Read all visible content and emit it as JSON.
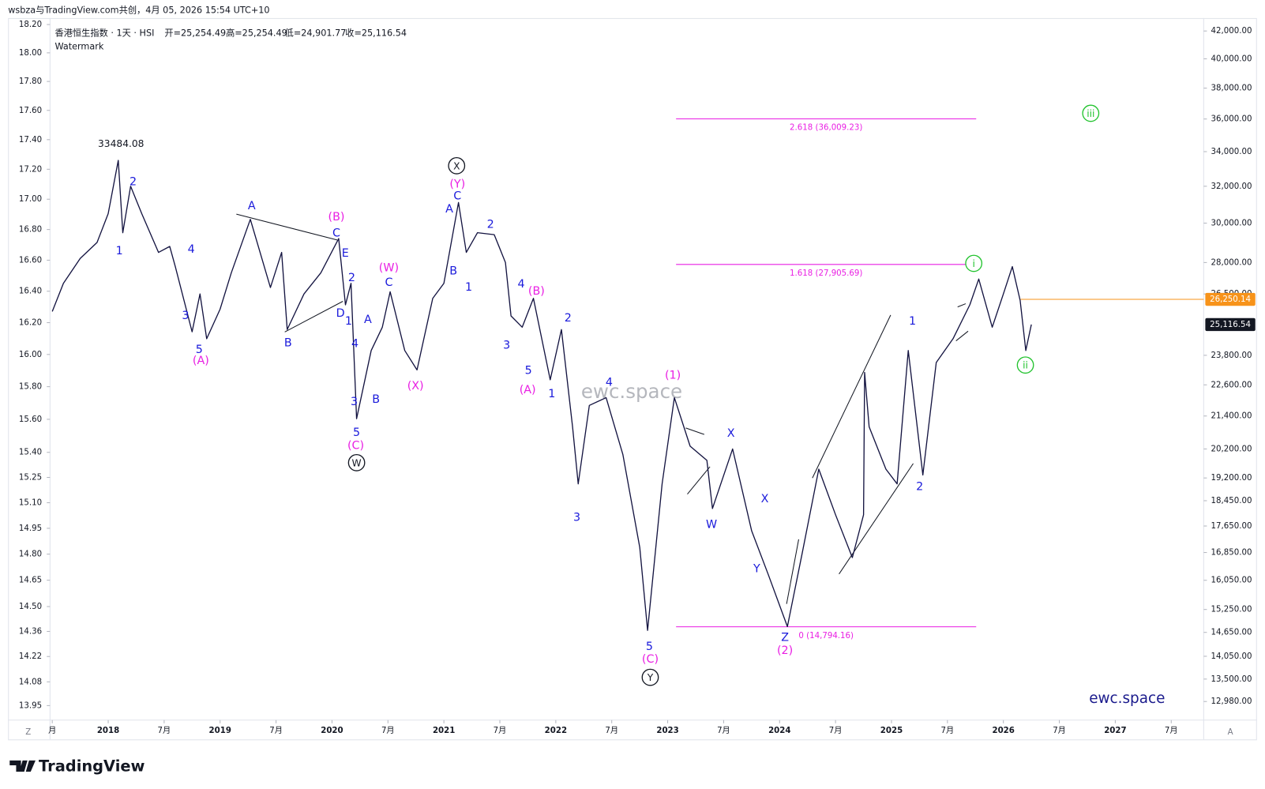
{
  "header": "wsbza与TradingView.com共创，4月 05, 2026 15:54 UTC+10",
  "chart_data": {
    "type": "line",
    "log_scale": true,
    "grid": false,
    "series": [
      {
        "name": "香港恒生指数 · 1天 · HSI",
        "color": "#131340",
        "values": [
          25700,
          27000,
          28200,
          29000,
          30500,
          33484.08,
          29500,
          32000,
          30500,
          28500,
          28800,
          27800,
          24800,
          26500,
          24500,
          25800,
          27500,
          30200,
          26800,
          28500,
          24900,
          26500,
          27500,
          29200,
          26000,
          27000,
          21300,
          24000,
          25000,
          26600,
          24000,
          23200,
          26300,
          27000,
          31100,
          28500,
          29500,
          29400,
          28000,
          25500,
          25000,
          26300,
          22800,
          24900,
          21000,
          19000,
          21800,
          22100,
          20000,
          17000,
          14700,
          19000,
          22100,
          20300,
          19800,
          18200,
          20200,
          17500,
          16200,
          14800,
          16800,
          19500,
          18000,
          16700,
          18000,
          23100,
          21000,
          19500,
          19000,
          24000,
          19300,
          23500,
          24500,
          26000,
          27200,
          25000,
          26500,
          27800,
          26200,
          24000,
          25116.54
        ]
      }
    ],
    "x": [
      2017.5,
      2017.6,
      2017.75,
      2017.9,
      2018.0,
      2018.09,
      2018.13,
      2018.2,
      2018.3,
      2018.45,
      2018.55,
      2018.6,
      2018.75,
      2018.82,
      2018.88,
      2019.0,
      2019.1,
      2019.27,
      2019.45,
      2019.55,
      2019.6,
      2019.75,
      2019.9,
      2020.06,
      2020.12,
      2020.17,
      2020.22,
      2020.35,
      2020.45,
      2020.52,
      2020.65,
      2020.76,
      2020.9,
      2021.0,
      2021.13,
      2021.2,
      2021.3,
      2021.45,
      2021.55,
      2021.6,
      2021.7,
      2021.8,
      2021.95,
      2022.05,
      2022.15,
      2022.2,
      2022.3,
      2022.45,
      2022.6,
      2022.75,
      2022.82,
      2022.95,
      2023.06,
      2023.2,
      2023.35,
      2023.4,
      2023.58,
      2023.75,
      2023.9,
      2024.07,
      2024.2,
      2024.35,
      2024.5,
      2024.65,
      2024.75,
      2024.76,
      2024.8,
      2024.95,
      2025.05,
      2025.15,
      2025.28,
      2025.4,
      2025.55,
      2025.7,
      2025.78,
      2025.9,
      2026.0,
      2026.08,
      2026.15,
      2026.2,
      2026.25
    ],
    "xlim": [
      2017.48,
      2027.79
    ],
    "xticks": [
      {
        "value": 2017.5,
        "label": "月"
      },
      2018,
      {
        "value": 2018.5,
        "label": "7月"
      },
      2019,
      {
        "value": 2019.5,
        "label": "7月"
      },
      2020,
      {
        "value": 2020.5,
        "label": "7月"
      },
      2021,
      {
        "value": 2021.5,
        "label": "7月"
      },
      2022,
      {
        "value": 2022.5,
        "label": "7月"
      },
      2023,
      {
        "value": 2023.5,
        "label": "7月"
      },
      2024,
      {
        "value": 2024.5,
        "label": "7月"
      },
      2025,
      {
        "value": 2025.5,
        "label": "7月"
      },
      2026,
      {
        "value": 2026.5,
        "label": "7月"
      },
      2027,
      {
        "value": 2027.5,
        "label": "7月"
      }
    ],
    "ylim": [
      12600,
      42960
    ],
    "yticks": [
      {
        "value": 42000,
        "label": "42,000.00"
      },
      {
        "value": 40000,
        "label": "40,000.00"
      },
      {
        "value": 38000,
        "label": "38,000.00"
      },
      {
        "value": 36000,
        "label": "36,000.00"
      },
      {
        "value": 34000,
        "label": "34,000.00"
      },
      {
        "value": 32000,
        "label": "32,000.00"
      },
      {
        "value": 30000,
        "label": "30,000.00"
      },
      {
        "value": 28000,
        "label": "28,000.00"
      },
      {
        "value": 26500,
        "label": "26,500.00"
      },
      {
        "value": 23800,
        "label": "23,800.00"
      },
      {
        "value": 22600,
        "label": "22,600.00"
      },
      {
        "value": 21400,
        "label": "21,400.00"
      },
      {
        "value": 20200,
        "label": "20,200.00"
      },
      {
        "value": 19200,
        "label": "19,200.00"
      },
      {
        "value": 18450,
        "label": "18,450.00"
      },
      {
        "value": 17650,
        "label": "17,650.00"
      },
      {
        "value": 16850,
        "label": "16,850.00"
      },
      {
        "value": 16050,
        "label": "16,050.00"
      },
      {
        "value": 15250,
        "label": "15,250.00"
      },
      {
        "value": 14650,
        "label": "14,650.00"
      },
      {
        "value": 14050,
        "label": "14,050.00"
      },
      {
        "value": 13500,
        "label": "13,500.00"
      },
      {
        "value": 12980,
        "label": "12,980.00"
      }
    ],
    "y2lim": [
      13.88,
      18.246
    ],
    "y2ticks": [
      {
        "value": 18.2,
        "label": "18.20"
      },
      {
        "value": 18,
        "label": "18.00"
      },
      {
        "value": 17.8,
        "label": "17.80"
      },
      {
        "value": 17.6,
        "label": "17.60"
      },
      {
        "value": 17.4,
        "label": "17.40"
      },
      {
        "value": 17.2,
        "label": "17.20"
      },
      {
        "value": 17,
        "label": "17.00"
      },
      {
        "value": 16.8,
        "label": "16.80"
      },
      {
        "value": 16.6,
        "label": "16.60"
      },
      {
        "value": 16.4,
        "label": "16.40"
      },
      {
        "value": 16.2,
        "label": "16.20"
      },
      {
        "value": 16,
        "label": "16.00"
      },
      {
        "value": 15.8,
        "label": "15.80"
      },
      {
        "value": 15.6,
        "label": "15.60"
      },
      {
        "value": 15.4,
        "label": "15.40"
      },
      {
        "value": 15.25,
        "label": "15.25"
      },
      {
        "value": 15.1,
        "label": "15.10"
      },
      {
        "value": 14.95,
        "label": "14.95"
      },
      {
        "value": 14.8,
        "label": "14.80"
      },
      {
        "value": 14.65,
        "label": "14.65"
      },
      {
        "value": 14.5,
        "label": "14.50"
      },
      {
        "value": 14.36,
        "label": "14.36"
      },
      {
        "value": 14.22,
        "label": "14.22"
      },
      {
        "value": 14.08,
        "label": "14.08"
      },
      {
        "value": 13.95,
        "label": "13.95"
      }
    ],
    "ohlc": [
      "开=25,254.49",
      "高=25,254.49",
      "低=24,901.77",
      "收=25,116.54"
    ],
    "subtitle": "Watermark",
    "watermark": "ewc.space",
    "brand": "ewc.space",
    "high_label": 33484.08,
    "fib_levels": [
      {
        "value": 36009.23,
        "label": "2.618 (36,009.23)",
        "color": "#e91ee3"
      },
      {
        "value": 27905.69,
        "label": "1.618 (27,905.69)",
        "color": "#e91ee3"
      },
      {
        "value": 14794.16,
        "label": "0 (14,794.16)",
        "color": "#e91ee3"
      }
    ],
    "price_labels": [
      {
        "value": 26250.14,
        "label": "26,250.14",
        "color": "#f7931a",
        "line": true
      },
      {
        "value": 25116.54,
        "label": "25,116.54",
        "color": "#131722",
        "line": false
      }
    ],
    "annotations": [
      {
        "text": "2",
        "color": "#1a1adb"
      },
      {
        "text": "1",
        "color": "#1a1adb"
      },
      {
        "text": "4",
        "color": "#1a1adb"
      },
      {
        "text": "3",
        "color": "#1a1adb"
      },
      {
        "text": "5",
        "color": "#1a1adb"
      },
      {
        "text": "(A)",
        "color": "#e91ee3"
      },
      {
        "text": "A",
        "color": "#1a1adb"
      },
      {
        "text": "B",
        "color": "#1a1adb"
      },
      {
        "text": "(B)",
        "color": "#e91ee3"
      },
      {
        "text": "C",
        "color": "#1a1adb"
      },
      {
        "text": "E",
        "color": "#1a1adb"
      },
      {
        "text": "2",
        "color": "#1a1adb"
      },
      {
        "text": "D",
        "color": "#1a1adb"
      },
      {
        "text": "1",
        "color": "#1a1adb"
      },
      {
        "text": "4",
        "color": "#1a1adb"
      },
      {
        "text": "3",
        "color": "#1a1adb"
      },
      {
        "text": "5",
        "color": "#1a1adb"
      },
      {
        "text": "(C)",
        "color": "#e91ee3"
      },
      {
        "text": "W",
        "color": "#131722",
        "circled": true
      },
      {
        "text": "A",
        "color": "#1a1adb"
      },
      {
        "text": "B",
        "color": "#1a1adb"
      },
      {
        "text": "(W)",
        "color": "#e91ee3"
      },
      {
        "text": "C",
        "color": "#1a1adb"
      },
      {
        "text": "(X)",
        "color": "#e91ee3"
      },
      {
        "text": "X",
        "color": "#131722",
        "circled": true
      },
      {
        "text": "(Y)",
        "color": "#e91ee3"
      },
      {
        "text": "C",
        "color": "#1a1adb"
      },
      {
        "text": "A",
        "color": "#1a1adb"
      },
      {
        "text": "B",
        "color": "#1a1adb"
      },
      {
        "text": "1",
        "color": "#1a1adb"
      },
      {
        "text": "2",
        "color": "#1a1adb"
      },
      {
        "text": "4",
        "color": "#1a1adb"
      },
      {
        "text": "(B)",
        "color": "#e91ee3"
      },
      {
        "text": "3",
        "color": "#1a1adb"
      },
      {
        "text": "5",
        "color": "#1a1adb"
      },
      {
        "text": "(A)",
        "color": "#e91ee3"
      },
      {
        "text": "1",
        "color": "#1a1adb"
      },
      {
        "text": "2",
        "color": "#1a1adb"
      },
      {
        "text": "3",
        "color": "#1a1adb"
      },
      {
        "text": "4",
        "color": "#1a1adb"
      },
      {
        "text": "5",
        "color": "#1a1adb"
      },
      {
        "text": "(C)",
        "color": "#e91ee3"
      },
      {
        "text": "Y",
        "color": "#131722",
        "circled": true
      },
      {
        "text": "(1)",
        "color": "#e91ee3"
      },
      {
        "text": "X",
        "color": "#1a1adb"
      },
      {
        "text": "W",
        "color": "#1a1adb"
      },
      {
        "text": "X",
        "color": "#1a1adb"
      },
      {
        "text": "Y",
        "color": "#1a1adb"
      },
      {
        "text": "Z",
        "color": "#1a1adb"
      },
      {
        "text": "(2)",
        "color": "#e91ee3"
      },
      {
        "text": "1",
        "color": "#1a1adb"
      },
      {
        "text": "2",
        "color": "#1a1adb"
      },
      {
        "text": "i",
        "color": "#22c32e",
        "circled": true
      },
      {
        "text": "ii",
        "color": "#22c32e",
        "circled": true
      },
      {
        "text": "iii",
        "color": "#22c32e",
        "circled": true
      }
    ]
  },
  "footer": {
    "logo": "TradingView",
    "buttons": [
      "Z",
      "A"
    ]
  }
}
